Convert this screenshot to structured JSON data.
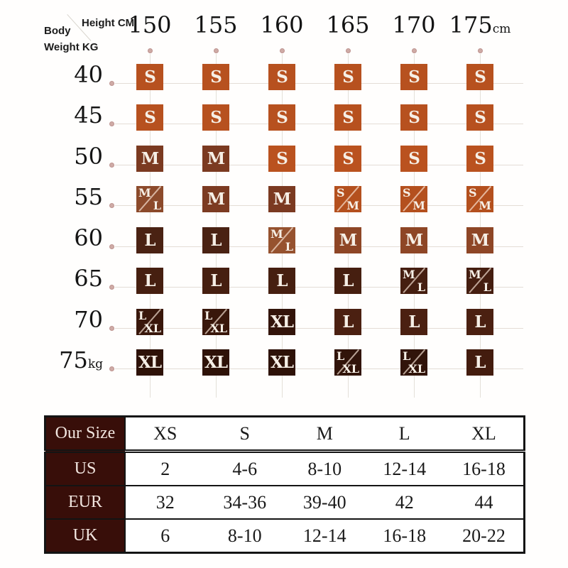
{
  "size_grid": {
    "height_label": "Height CM",
    "body_label": "Body",
    "weight_label": "Weight  KG",
    "columns": [
      "150",
      "155",
      "160",
      "165",
      "170",
      "175"
    ],
    "column_unit": "cm",
    "rows": [
      "40",
      "45",
      "50",
      "55",
      "60",
      "65",
      "70",
      "75"
    ],
    "row_unit": "kg",
    "cells": [
      [
        {
          "label": "S",
          "color": "#b7511f"
        },
        {
          "label": "S",
          "color": "#b7511f"
        },
        {
          "label": "S",
          "color": "#b7511f"
        },
        {
          "label": "S",
          "color": "#b7511f"
        },
        {
          "label": "S",
          "color": "#b7511f"
        },
        {
          "label": "S",
          "color": "#b7511f"
        }
      ],
      [
        {
          "label": "S",
          "color": "#b7511f"
        },
        {
          "label": "S",
          "color": "#b7511f"
        },
        {
          "label": "S",
          "color": "#b7511f"
        },
        {
          "label": "S",
          "color": "#b7511f"
        },
        {
          "label": "S",
          "color": "#b7511f"
        },
        {
          "label": "S",
          "color": "#b7511f"
        }
      ],
      [
        {
          "label": "M",
          "color": "#7b3a21"
        },
        {
          "label": "M",
          "color": "#7b3a21"
        },
        {
          "label": "S",
          "color": "#ba521f"
        },
        {
          "label": "S",
          "color": "#ba521f"
        },
        {
          "label": "S",
          "color": "#ba521f"
        },
        {
          "label": "S",
          "color": "#ba521f"
        }
      ],
      [
        {
          "label": "M/L",
          "color": "#8c4a2b"
        },
        {
          "label": "M",
          "color": "#7c3b22"
        },
        {
          "label": "M",
          "color": "#7b3a21"
        },
        {
          "label": "S/M",
          "color": "#b4501e"
        },
        {
          "label": "S/M",
          "color": "#b4501e"
        },
        {
          "label": "S/M",
          "color": "#b4501e"
        }
      ],
      [
        {
          "label": "L",
          "color": "#4a2213"
        },
        {
          "label": "L",
          "color": "#4a2213"
        },
        {
          "label": "M/L",
          "color": "#96522f"
        },
        {
          "label": "M",
          "color": "#8e4626"
        },
        {
          "label": "M",
          "color": "#8e4626"
        },
        {
          "label": "M",
          "color": "#8e4626"
        }
      ],
      [
        {
          "label": "L",
          "color": "#461f10"
        },
        {
          "label": "L",
          "color": "#461f10"
        },
        {
          "label": "L",
          "color": "#461f10"
        },
        {
          "label": "L",
          "color": "#461f10"
        },
        {
          "label": "M/L",
          "color": "#451e10"
        },
        {
          "label": "M/L",
          "color": "#451e10"
        }
      ],
      [
        {
          "label": "L/XL",
          "color": "#39170b"
        },
        {
          "label": "L/XL",
          "color": "#39170b"
        },
        {
          "label": "XL",
          "color": "#33140a"
        },
        {
          "label": "L",
          "color": "#4b2011"
        },
        {
          "label": "L",
          "color": "#4b2011"
        },
        {
          "label": "L",
          "color": "#4b2011"
        }
      ],
      [
        {
          "label": "XL",
          "color": "#2e1208"
        },
        {
          "label": "XL",
          "color": "#2e1208"
        },
        {
          "label": "XL",
          "color": "#2e1208"
        },
        {
          "label": "L/XL",
          "color": "#31140a"
        },
        {
          "label": "L/XL",
          "color": "#31140a"
        },
        {
          "label": "L",
          "color": "#431c0e"
        }
      ]
    ]
  },
  "conversion_table": {
    "header_bg": "#380e09",
    "rows": [
      {
        "label": "Our Size",
        "values": [
          "XS",
          "S",
          "M",
          "L",
          "XL"
        ]
      },
      {
        "label": "US",
        "values": [
          "2",
          "4-6",
          "8-10",
          "12-14",
          "16-18"
        ]
      },
      {
        "label": "EUR",
        "values": [
          "32",
          "34-36",
          "39-40",
          "42",
          "44"
        ]
      },
      {
        "label": "UK",
        "values": [
          "6",
          "8-10",
          "12-14",
          "16-18",
          "20-22"
        ]
      }
    ]
  },
  "chart_data": [
    {
      "type": "heatmap",
      "title": "Clothing size by height and weight",
      "xlabel": "Height CM",
      "ylabel": "Body Weight KG",
      "x": [
        150,
        155,
        160,
        165,
        170,
        175
      ],
      "y": [
        40,
        45,
        50,
        55,
        60,
        65,
        70,
        75
      ],
      "values": [
        [
          "S",
          "S",
          "S",
          "S",
          "S",
          "S"
        ],
        [
          "S",
          "S",
          "S",
          "S",
          "S",
          "S"
        ],
        [
          "M",
          "M",
          "S",
          "S",
          "S",
          "S"
        ],
        [
          "M/L",
          "M",
          "M",
          "S/M",
          "S/M",
          "S/M"
        ],
        [
          "L",
          "L",
          "M/L",
          "M",
          "M",
          "M"
        ],
        [
          "L",
          "L",
          "L",
          "L",
          "M/L",
          "M/L"
        ],
        [
          "L/XL",
          "L/XL",
          "XL",
          "L",
          "L",
          "L"
        ],
        [
          "XL",
          "XL",
          "XL",
          "L/XL",
          "L/XL",
          "L"
        ]
      ],
      "legend_position": "none",
      "grid": true
    },
    {
      "type": "table",
      "columns": [
        "Our Size",
        "XS",
        "S",
        "M",
        "L",
        "XL"
      ],
      "rows": [
        [
          "US",
          "2",
          "4-6",
          "8-10",
          "12-14",
          "16-18"
        ],
        [
          "EUR",
          "32",
          "34-36",
          "39-40",
          "42",
          "44"
        ],
        [
          "UK",
          "6",
          "8-10",
          "12-14",
          "16-18",
          "20-22"
        ]
      ]
    }
  ]
}
